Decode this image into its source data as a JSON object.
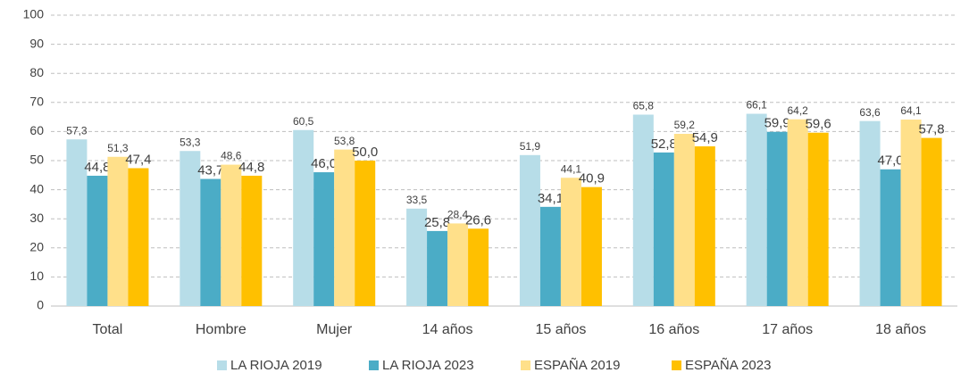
{
  "chart_data": {
    "type": "bar",
    "categories": [
      "Total",
      "Hombre",
      "Mujer",
      "14 años",
      "15 años",
      "16 años",
      "17 años",
      "18 años"
    ],
    "series": [
      {
        "name": "LA RIOJA 2019",
        "color": "#b7dde8",
        "values": [
          57.3,
          53.3,
          60.5,
          33.5,
          51.9,
          65.8,
          66.1,
          63.6
        ],
        "value_labels": [
          "57,3",
          "53,3",
          "60,5",
          "33,5",
          "51,9",
          "65,8",
          "66,1",
          "63,6"
        ]
      },
      {
        "name": "LA RIOJA 2023",
        "color": "#4bacc6",
        "values": [
          44.8,
          43.7,
          46.0,
          25.8,
          34.1,
          52.8,
          59.9,
          47.0
        ],
        "value_labels": [
          "44,8",
          "43,7",
          "46,0",
          "25,8",
          "34,1",
          "52,8",
          "59,9",
          "47,0"
        ]
      },
      {
        "name": "ESPAÑA 2019",
        "color": "#ffe08a",
        "values": [
          51.3,
          48.6,
          53.8,
          28.4,
          44.1,
          59.2,
          64.2,
          64.1
        ],
        "value_labels": [
          "51,3",
          "48,6",
          "53,8",
          "28,4",
          "44,1",
          "59,2",
          "64,2",
          "64,1"
        ]
      },
      {
        "name": "ESPAÑA 2023",
        "color": "#ffc000",
        "values": [
          47.4,
          44.8,
          50.0,
          26.6,
          40.9,
          54.9,
          59.6,
          57.8
        ],
        "value_labels": [
          "47,4",
          "44,8",
          "50,0",
          "26,6",
          "40,9",
          "54,9",
          "59,6",
          "57,8"
        ]
      }
    ],
    "ylim": [
      0,
      100
    ],
    "yticks": [
      0,
      10,
      20,
      30,
      40,
      50,
      60,
      70,
      80,
      90,
      100
    ],
    "grid": true,
    "legend": "bottom"
  }
}
